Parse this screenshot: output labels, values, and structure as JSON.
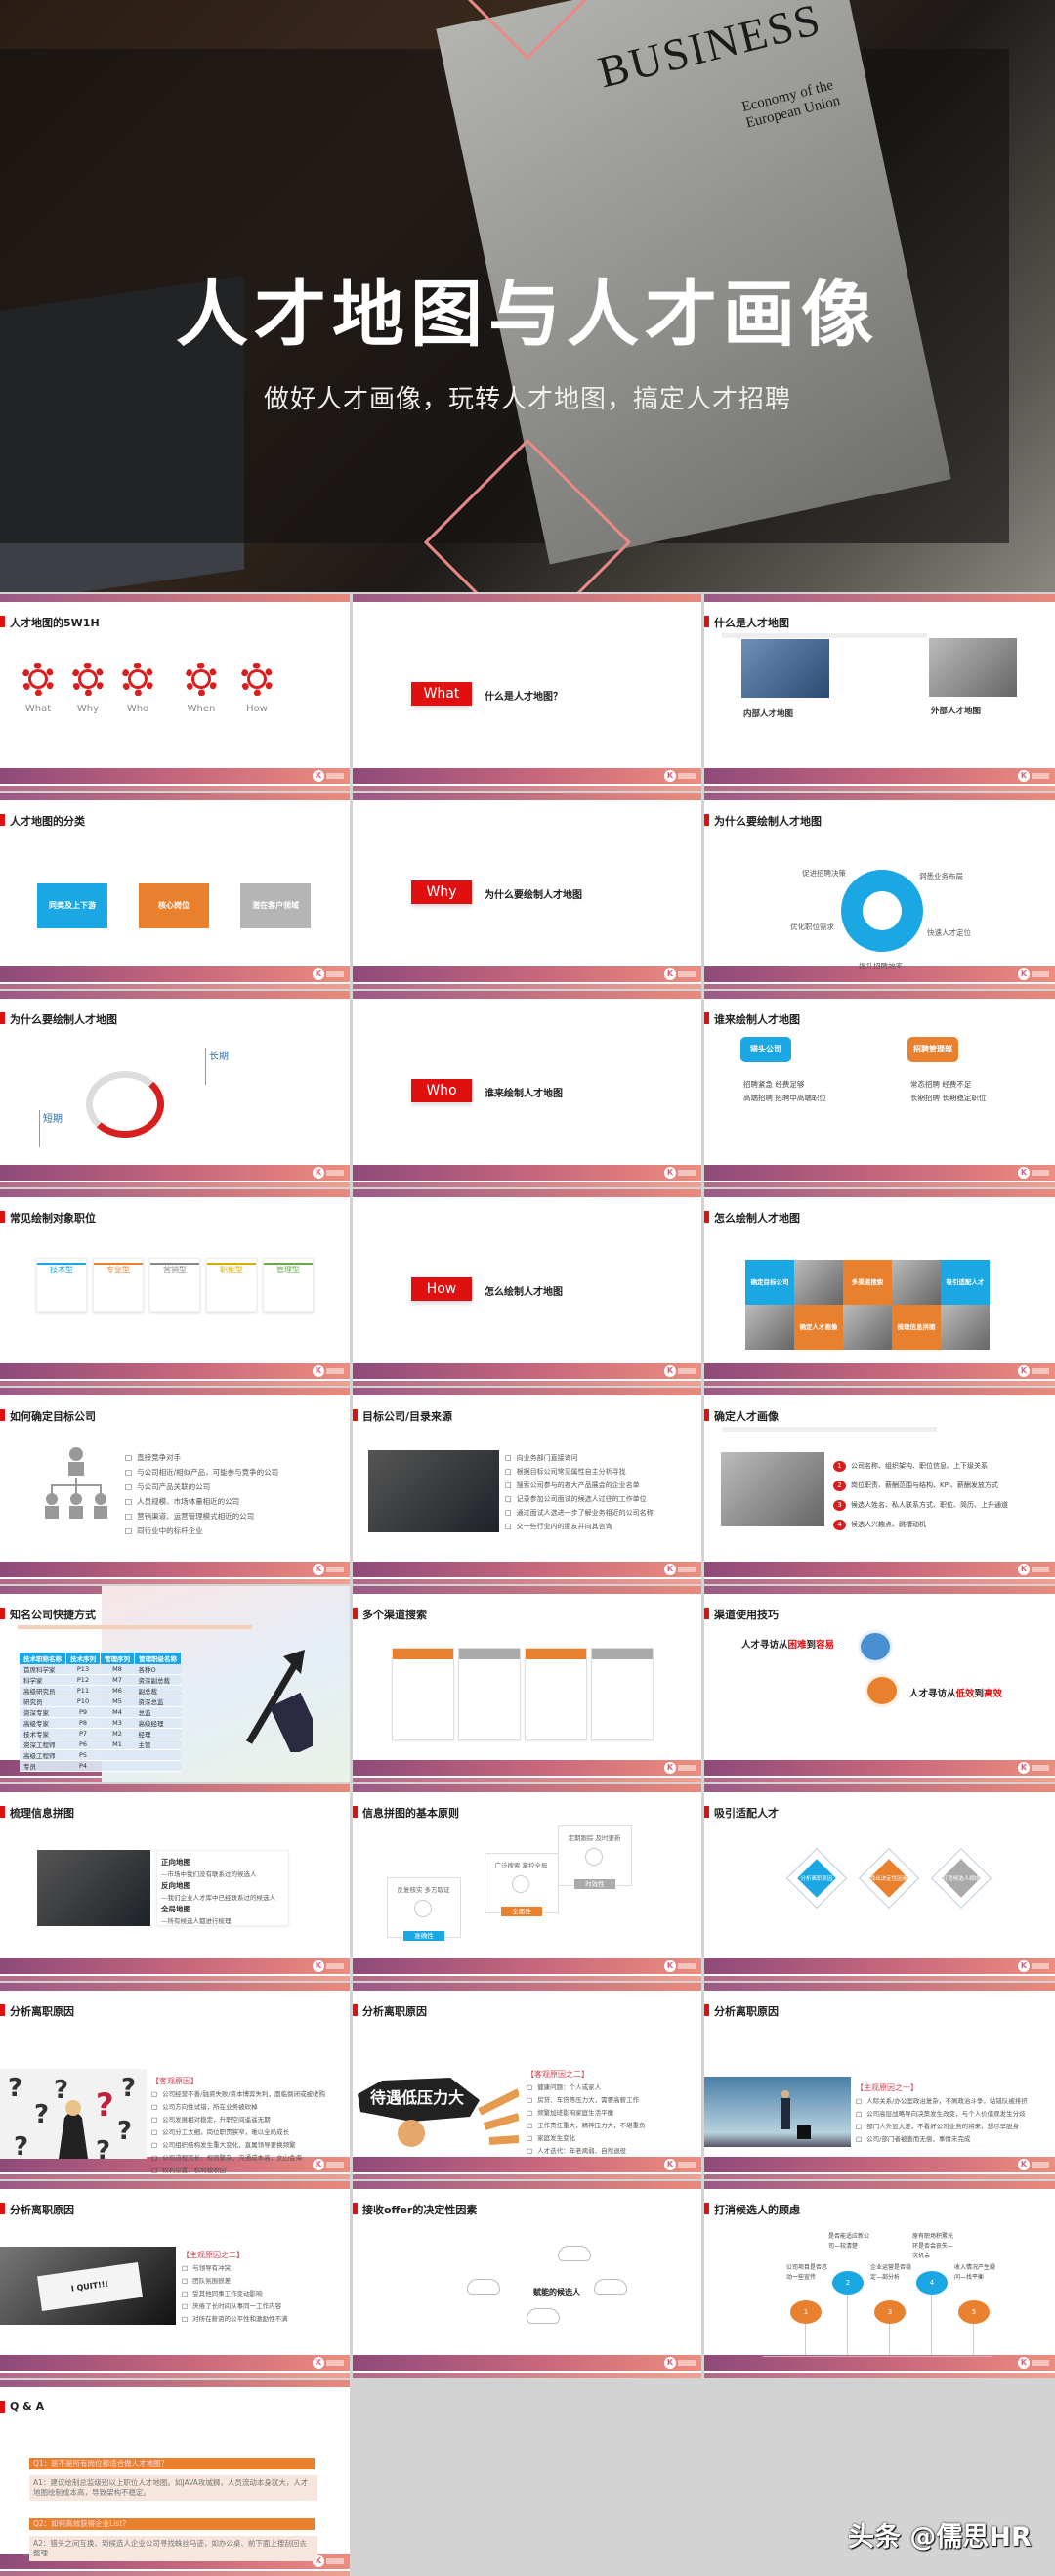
{
  "cover": {
    "title": "人才地图与人才画像",
    "subtitle": "做好人才画像，玩转人才地图，搞定人才招聘",
    "newspaper_heading": "BUSINESS",
    "newspaper_sub": "Economy of the European Union"
  },
  "colors": {
    "red": "#e01010",
    "blue": "#1aa7e3",
    "orange": "#e8802e",
    "gray": "#b5b5b5",
    "band_start": "#8e4a7a",
    "band_end": "#ec8d7e"
  },
  "slides": [
    {
      "type": "gears",
      "title": "人才地图的5W1H",
      "items": [
        "What",
        "Why",
        "Who",
        "When",
        "How"
      ]
    },
    {
      "type": "section",
      "badge": "What",
      "text": "什么是人才地图？"
    },
    {
      "type": "twoimg",
      "title": "什么是人才地图",
      "cards": [
        {
          "heading": "内部人才地图"
        },
        {
          "heading": "外部人才地图"
        }
      ]
    },
    {
      "type": "boxes",
      "title": "人才地图的分类",
      "boxes": [
        {
          "label": "同类及上下游",
          "color": "#1aa7e3"
        },
        {
          "label": "核心岗位",
          "color": "#e8802e"
        },
        {
          "label": "潜在客户领域",
          "color": "#b5b5b5"
        }
      ]
    },
    {
      "type": "section",
      "badge": "Why",
      "text": "为什么要绘制人才地图"
    },
    {
      "type": "cycle",
      "title": "为什么要绘制人才地图",
      "labels": [
        "促进招聘决策",
        "洞悉业务布局",
        "快速人才定位",
        "提升招聘效率",
        "优化职位需求"
      ]
    },
    {
      "type": "donut",
      "title": "为什么要绘制人才地图",
      "long": "长期",
      "short": "短期"
    },
    {
      "type": "section",
      "badge": "Who",
      "text": "谁来绘制人才地图"
    },
    {
      "type": "bubbles",
      "title": "谁来绘制人才地图",
      "items": [
        {
          "label": "猎头公司",
          "color": "#1aa7e3",
          "lines": [
            "招聘紧急 经费足够",
            "高端招聘 招聘中高端职位"
          ]
        },
        {
          "label": "招聘管理部",
          "color": "#e8802e",
          "lines": [
            "常态招聘 经费不足",
            "长期招聘 长期稳定职位"
          ]
        }
      ]
    },
    {
      "type": "cards5",
      "title": "常见绘制对象职位",
      "cards": [
        {
          "heading": "技术型",
          "color": "#1aa7e3"
        },
        {
          "heading": "专业型",
          "color": "#e8802e"
        },
        {
          "heading": "营销型",
          "color": "#888888"
        },
        {
          "heading": "职能型",
          "color": "#d4b000"
        },
        {
          "heading": "管理型",
          "color": "#6aa84f"
        }
      ]
    },
    {
      "type": "section",
      "badge": "How",
      "text": "怎么绘制人才地图"
    },
    {
      "type": "mosaic",
      "title": "怎么绘制人才地图",
      "tiles": [
        "确定目标公司",
        "多渠道搜索",
        "吸引适配人才",
        "确定人才画像",
        "梳理信息拼图"
      ]
    },
    {
      "type": "org",
      "title": "如何确定目标公司",
      "bullets": [
        "直接竞争对手",
        "与公司相近/相似产品，可能参与竞争的公司",
        "与公司产品关联的公司",
        "人员规模、市场体量相近的公司",
        "营销渠道、运营管理模式相近的公司",
        "同行业中的标杆企业"
      ]
    },
    {
      "type": "imgbul",
      "title": "目标公司/目录来源",
      "bullets": [
        "向业务部门直接询问",
        "根据目标公司常见属性自主分析寻找",
        "搜索公司参与的各大产品展会的企业名单",
        "记录参加公司面试的候选人过往的工作单位",
        "通过面试人选进一步了解业务相近的公司名称",
        "交一些行业内的朋友并向其咨询"
      ]
    },
    {
      "type": "numbered",
      "title": "确定人才画像",
      "items": [
        "公司名称、组织架构、职位信息、上下级关系",
        "岗位职责、薪酬范围与结构、KPI、薪酬发放方式",
        "候选人姓名、私人联系方式、职位、简历、上升通道",
        "候选人兴趣点、跳槽动机"
      ]
    },
    {
      "type": "table",
      "title": "知名公司快捷方式",
      "headers": [
        "技术职称名称",
        "技术序列",
        "管理序列",
        "管理职级名称"
      ],
      "rows": [
        [
          "首席科学家",
          "P13",
          "M8",
          "各种O"
        ],
        [
          "科学家",
          "P12",
          "M7",
          "资深副总裁"
        ],
        [
          "高级研究员",
          "P11",
          "M6",
          "副总裁"
        ],
        [
          "研究员",
          "P10",
          "M5",
          "资深总监"
        ],
        [
          "资深专家",
          "P9",
          "M4",
          "总监"
        ],
        [
          "高级专家",
          "P8",
          "M3",
          "高级经理"
        ],
        [
          "技术专家",
          "P7",
          "M2",
          "经理"
        ],
        [
          "资深工程师",
          "P6",
          "M1",
          "主管"
        ],
        [
          "高级工程师",
          "P5",
          "",
          ""
        ],
        [
          "专员",
          "P4",
          "",
          ""
        ]
      ]
    },
    {
      "type": "channels",
      "title": "多个渠道搜索"
    },
    {
      "type": "tips",
      "title": "渠道使用技巧",
      "tip1": {
        "pre": "人才寻访从",
        "a": "困难",
        "mid": "到",
        "b": "容易"
      },
      "tip2": {
        "pre": "人才寻访从",
        "a": "低效",
        "mid": "到",
        "b": "高效"
      }
    },
    {
      "type": "puzzle",
      "title": "梳理信息拼图",
      "lines": [
        {
          "text": "正向地图",
          "bold": true
        },
        {
          "text": "—市场中我们没有联系过的候选人"
        },
        {
          "text": "反向地图",
          "bold": true
        },
        {
          "text": "—我们企业人才库中已经联系过的候选人"
        },
        {
          "text": "全局地图",
          "bold": true
        },
        {
          "text": "—所有候选人都进行梳理"
        }
      ]
    },
    {
      "type": "principles",
      "title": "信息拼图的基本原则",
      "cards": [
        {
          "heading": "反复核实 多方取证",
          "tag": "准确性",
          "color": "#1aa7e3"
        },
        {
          "heading": "广泛搜索 掌控全局",
          "tag": "全面性",
          "color": "#e8802e"
        },
        {
          "heading": "定期跟踪 及时更新",
          "tag": "时效性",
          "color": "#aaaaaa"
        }
      ]
    },
    {
      "type": "diamonds",
      "title": "吸引适配人才",
      "items": [
        {
          "label": "分析离职原因",
          "color": "#1aa7e3"
        },
        {
          "label": "找出决定性因素",
          "color": "#e8802e"
        },
        {
          "label": "打消候选人顾虑",
          "color": "#aaaaaa"
        }
      ]
    },
    {
      "type": "reasons",
      "title": "分析离职原因",
      "img": "questions",
      "tag": "【客观原因】",
      "bullets": [
        "公司经营不善/融资失败/资本博弈失利，面临倒闭或被收购",
        "公司方向性试错，所在业务被砍掉",
        "公司发展相对稳定，升职空间遥遥无期",
        "公司分工太细，岗位职责狭窄，难以全局成长",
        "公司组织结构发生重大变化，直属领导更换频繁",
        "公司流程冗长、规则繁杂，沟通成本高，文山会海",
        "权利空置、权利被收回",
        "公司办公地点发生变化",
        "公司办工环境差"
      ]
    },
    {
      "type": "reasons",
      "title": "分析离职原因",
      "img": "pressure",
      "img_text": "待遇低压力大",
      "tag": "【客观原因之二】",
      "bullets": [
        "健康问题：个人或家人",
        "房贷、车贷等压力大，需要高薪工作",
        "频繁加班影响家庭生活平衡",
        "工作责任重大，精神压力大，不堪重负",
        "家庭发生变化",
        "人才迭代：年老病弱、自然退役"
      ]
    },
    {
      "type": "reasons",
      "title": "分析离职原因",
      "img": "travel",
      "tag": "【主观原因之一】",
      "bullets": [
        "人际关系/办公室政治复杂，不屑政治斗争，站错队被排挤",
        "公司高层战略导向决策发生改变，与个人价值观发生分歧",
        "部门人外显大差，不看好公司业务的将来，想尽早脱身",
        "公司/部门者被查而无偿，事情未完成"
      ]
    },
    {
      "type": "reasons",
      "title": "分析离职原因",
      "img": "quit",
      "img_text": "I QUIT!!!",
      "tag": "【主观原因之二】",
      "bullets": [
        "与领导有冲突",
        "团队氛围很差",
        "受其他同事工作变动影响",
        "厌倦了长时间从事同一工作内容",
        "对所在薪资的公平性和激励性不满"
      ]
    },
    {
      "type": "clouds",
      "title": "接收offer的决定性因素",
      "center": "赋能的候选人"
    },
    {
      "type": "timeline",
      "title": "打消候选人的顾虑",
      "nodes": [
        {
          "num": "1",
          "color": "#e8802e",
          "text": "公司项目是否忽动一些宣传"
        },
        {
          "num": "2",
          "color": "#1aa7e3",
          "text": "是否能适应新公司—较清楚"
        },
        {
          "num": "3",
          "color": "#e8802e",
          "text": "企业运营是否稳定—部分析"
        },
        {
          "num": "4",
          "color": "#1aa7e3",
          "text": "原有职场积累光环是否会丧失—次机会"
        },
        {
          "num": "5",
          "color": "#e8802e",
          "text": "收入情况产生疑问—找平衡"
        }
      ]
    },
    {
      "type": "qa",
      "title": "Q & A",
      "qa": [
        {
          "q": "Q1：是不是所有岗位都适合做人才地图？",
          "a": "A1：建议绘制总监级别以上职位人才地图。如JAVA攻城狮，人员流动本身就大，人才地图绘制成本高，导致架构不稳定。"
        },
        {
          "q": "Q2：如何高效获得企业List？",
          "a": "A2：猎头之间互换、到候选人企业公司寻找蛛丝马迹，如办公桌、前下面上搜刮回去整理"
        }
      ]
    }
  ],
  "watermark": "头条 @儒思HR"
}
